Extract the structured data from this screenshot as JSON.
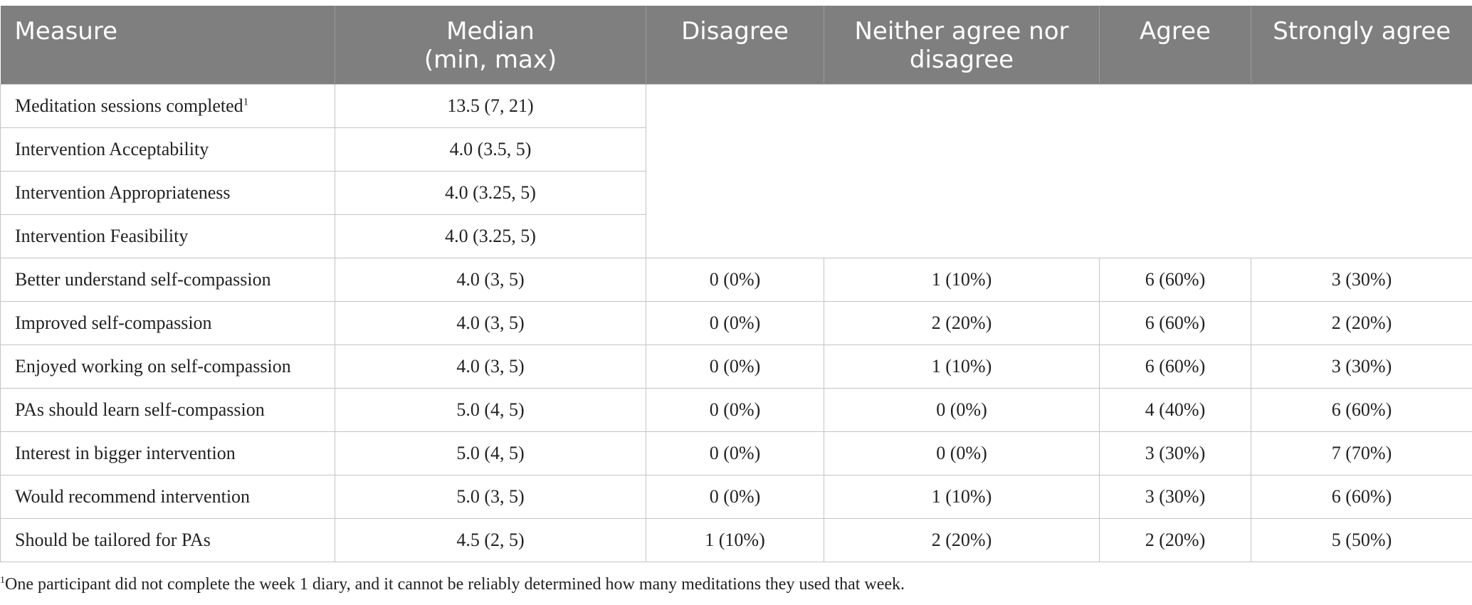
{
  "headers": [
    {
      "line1": "Measure",
      "line2": ""
    },
    {
      "line1": "Median",
      "line2": "(min, max)"
    },
    {
      "line1": "Disagree",
      "line2": ""
    },
    {
      "line1": "Neither agree nor",
      "line2": "disagree"
    },
    {
      "line1": "Agree",
      "line2": ""
    },
    {
      "line1": "Strongly agree",
      "line2": ""
    }
  ],
  "summary_rows": [
    {
      "measure": "Meditation sessions completed",
      "footnote_mark": "1",
      "median": "13.5 (7, 21)"
    },
    {
      "measure": "Intervention Acceptability",
      "footnote_mark": "",
      "median": "4.0 (3.5, 5)"
    },
    {
      "measure": "Intervention Appropriateness",
      "footnote_mark": "",
      "median": "4.0 (3.25, 5)"
    },
    {
      "measure": "Intervention Feasibility",
      "footnote_mark": "",
      "median": "4.0 (3.25, 5)"
    }
  ],
  "likert_rows": [
    {
      "measure": "Better understand self-compassion",
      "median": "4.0 (3, 5)",
      "disagree": "0 (0%)",
      "neither": "1 (10%)",
      "agree": "6 (60%)",
      "strongly_agree": "3 (30%)"
    },
    {
      "measure": "Improved self-compassion",
      "median": "4.0 (3, 5)",
      "disagree": "0 (0%)",
      "neither": "2 (20%)",
      "agree": "6 (60%)",
      "strongly_agree": "2 (20%)"
    },
    {
      "measure": "Enjoyed working on self-compassion",
      "median": "4.0 (3, 5)",
      "disagree": "0 (0%)",
      "neither": "1 (10%)",
      "agree": "6 (60%)",
      "strongly_agree": "3 (30%)"
    },
    {
      "measure": "PAs should learn self-compassion",
      "median": "5.0 (4, 5)",
      "disagree": "0 (0%)",
      "neither": "0 (0%)",
      "agree": "4 (40%)",
      "strongly_agree": "6 (60%)"
    },
    {
      "measure": "Interest in bigger intervention",
      "median": "5.0 (4, 5)",
      "disagree": "0 (0%)",
      "neither": "0 (0%)",
      "agree": "3 (30%)",
      "strongly_agree": "7 (70%)"
    },
    {
      "measure": "Would recommend intervention",
      "median": "5.0 (3, 5)",
      "disagree": "0 (0%)",
      "neither": "1 (10%)",
      "agree": "3 (30%)",
      "strongly_agree": "6 (60%)"
    },
    {
      "measure": "Should be tailored for PAs",
      "median": "4.5 (2, 5)",
      "disagree": "1 (10%)",
      "neither": "2 (20%)",
      "agree": "2 (20%)",
      "strongly_agree": "5 (50%)"
    }
  ],
  "footnote": {
    "mark": "1",
    "text": "One participant did not complete the week 1 diary, and it cannot be reliably determined how many meditations they used that week."
  }
}
